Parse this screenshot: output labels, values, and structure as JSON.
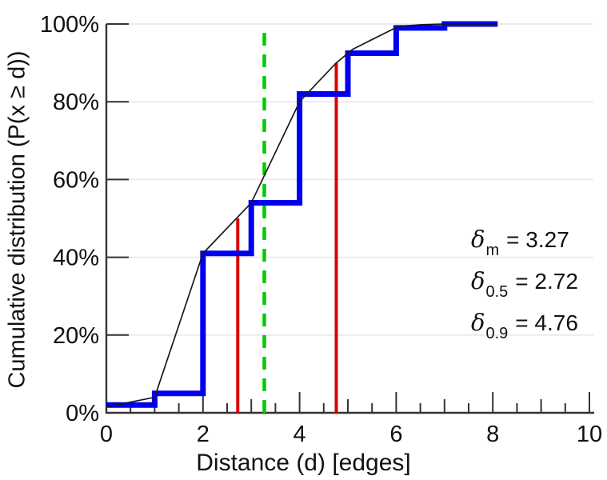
{
  "figure": {
    "x_axis_label": "Distance (d) [edges]",
    "y_axis_label": "Cumulative distribution (P(x  ≥  d))"
  },
  "annotations": [
    {
      "symbol": "δ",
      "subscript": "m",
      "text": "= 3.27"
    },
    {
      "symbol": "δ",
      "subscript": "0.5",
      "text": "= 2.72"
    },
    {
      "symbol": "δ",
      "subscript": "0.9",
      "text": "= 4.76"
    }
  ],
  "colors": {
    "step_series": "#0000ee",
    "fitted_curve": "#1a1a1a",
    "quantile_lines": "#dd0000",
    "mean_line": "#00cc00",
    "axis": "#333333",
    "grid": "#eaeaea",
    "text": "#111111"
  },
  "chart_data": {
    "type": "line",
    "title": "",
    "xlabel": "Distance (d) [edges]",
    "ylabel": "Cumulative distribution (P(x ≥ d))",
    "xlim": [
      0,
      10
    ],
    "ylim": [
      0,
      100
    ],
    "grid": "horizontal",
    "legend": "none",
    "x_ticks": {
      "major": [
        0,
        2,
        4,
        6,
        8,
        10
      ],
      "labels": [
        "0",
        "2",
        "4",
        "6",
        "8",
        "10"
      ],
      "odd_ticks": [
        1,
        3,
        5,
        7,
        9
      ],
      "minor_step": 0.5
    },
    "y_ticks": {
      "major": [
        0,
        20,
        40,
        60,
        80,
        100
      ],
      "labels": [
        "0%",
        "20%",
        "40%",
        "60%",
        "80%",
        "100%"
      ]
    },
    "series": [
      {
        "name": "empirical-cdf-steps",
        "style": "steps-post",
        "color": "#0000ee",
        "width": 7,
        "x": [
          0,
          1,
          2,
          3,
          4,
          5,
          6,
          7,
          8.1
        ],
        "y_percent": [
          2,
          5,
          41,
          54,
          82,
          92.5,
          99,
          100,
          100
        ]
      },
      {
        "name": "fitted-cdf-curve",
        "style": "line",
        "color": "#1a1a1a",
        "width": 1.7,
        "points": [
          [
            0,
            1.5
          ],
          [
            1,
            4
          ],
          [
            2,
            41
          ],
          [
            3,
            54
          ],
          [
            4,
            80
          ],
          [
            4.4,
            85.3
          ],
          [
            4.76,
            90
          ],
          [
            5.1,
            93.5
          ],
          [
            5.5,
            96
          ],
          [
            6.05,
            99.4
          ],
          [
            6.5,
            99.8
          ],
          [
            7,
            100
          ],
          [
            8.1,
            100
          ]
        ]
      }
    ],
    "markers": [
      {
        "name": "delta-0.5-line",
        "x": 2.72,
        "y_top_percent": 50,
        "color": "#dd0000",
        "style": "solid",
        "width": 4
      },
      {
        "name": "delta-0.9-line",
        "x": 4.76,
        "y_top_percent": 90,
        "color": "#dd0000",
        "style": "solid",
        "width": 4
      },
      {
        "name": "delta-mean-line",
        "x": 3.27,
        "y_top_percent": 100,
        "color": "#00cc00",
        "style": "dashed",
        "width": 4.5
      }
    ],
    "annotations_text": [
      "δ_m = 3.27",
      "δ_0.5 = 2.72",
      "δ_0.9 = 4.76"
    ]
  }
}
